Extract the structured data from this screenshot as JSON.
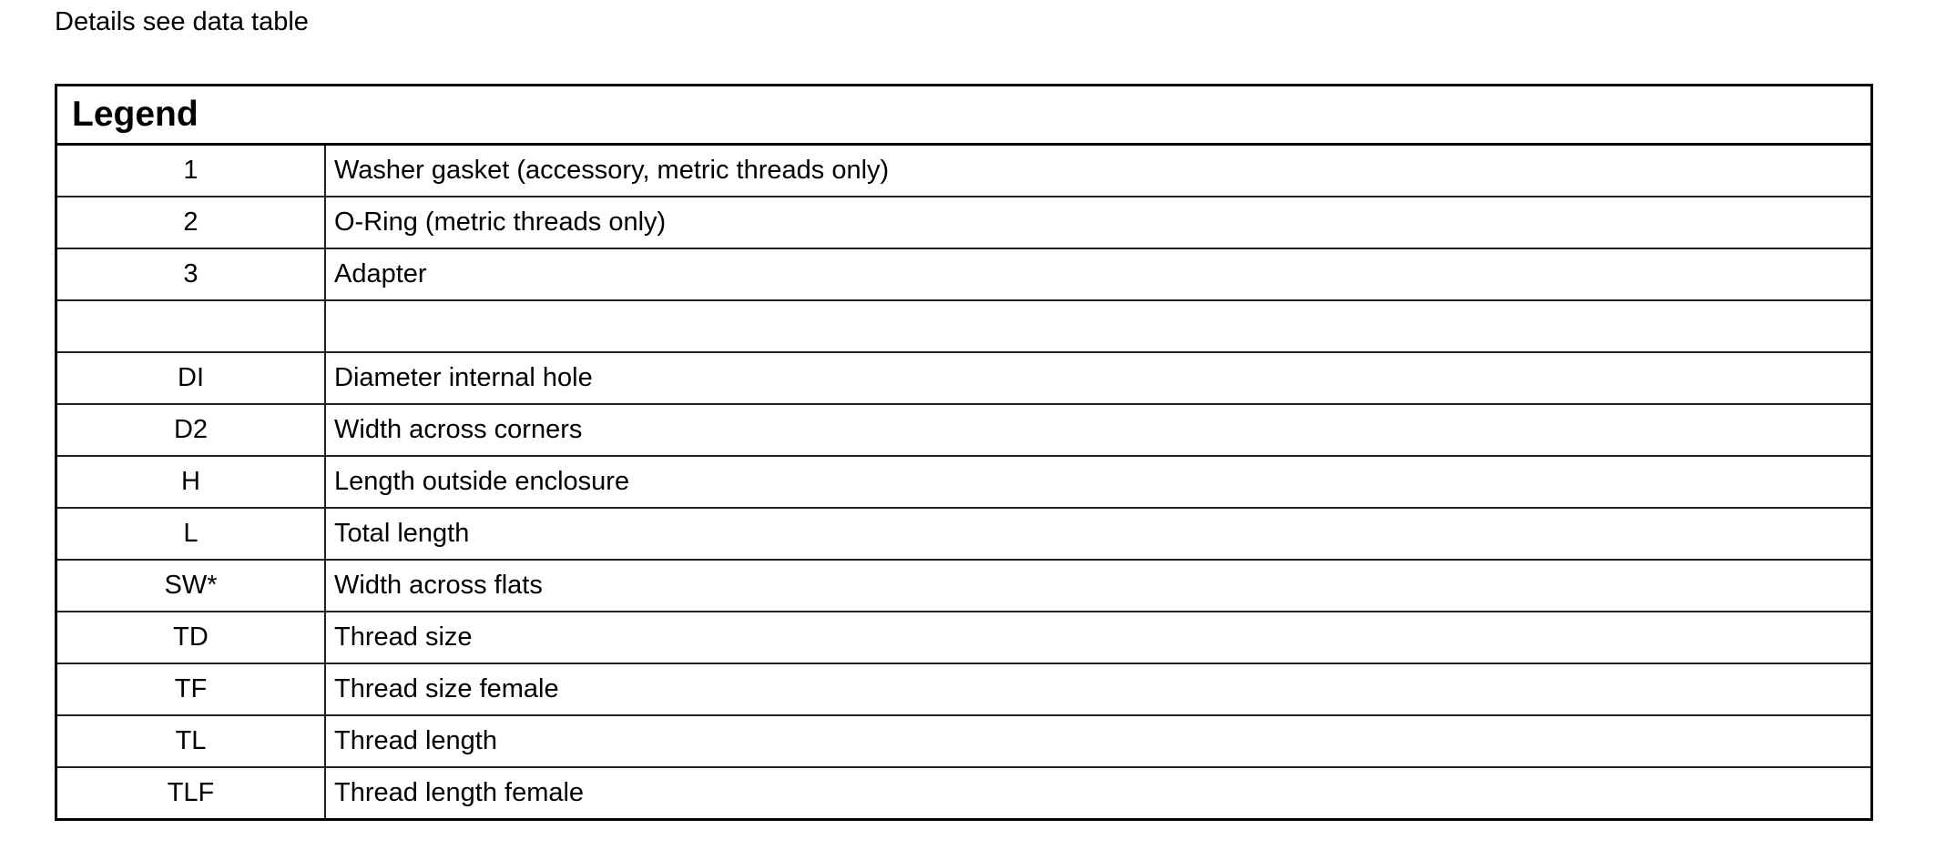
{
  "intro_text": "Details see data table",
  "legend": {
    "title": "Legend",
    "rows": [
      {
        "key": "1",
        "description": "Washer gasket (accessory, metric threads only)"
      },
      {
        "key": "2",
        "description": "O-Ring (metric threads only)"
      },
      {
        "key": "3",
        "description": "Adapter"
      },
      {
        "key": "",
        "description": ""
      },
      {
        "key": "DI",
        "description": "Diameter internal hole"
      },
      {
        "key": "D2",
        "description": "Width across corners"
      },
      {
        "key": "H",
        "description": "Length outside enclosure"
      },
      {
        "key": "L",
        "description": "Total length"
      },
      {
        "key": "SW*",
        "description": "Width across flats"
      },
      {
        "key": "TD",
        "description": "Thread size"
      },
      {
        "key": "TF",
        "description": "Thread size female"
      },
      {
        "key": "TL",
        "description": "Thread length"
      },
      {
        "key": "TLF",
        "description": "Thread length female"
      }
    ]
  }
}
